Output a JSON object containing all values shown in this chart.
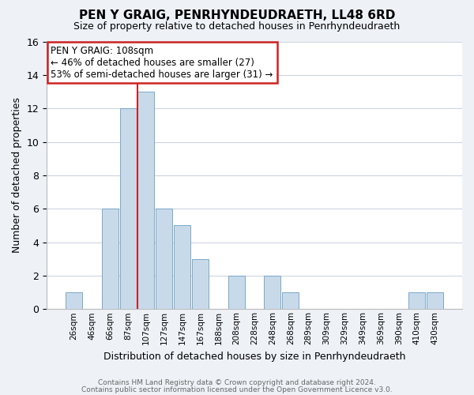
{
  "title": "PEN Y GRAIG, PENRHYNDEUDRAETH, LL48 6RD",
  "subtitle": "Size of property relative to detached houses in Penrhyndeudraeth",
  "xlabel": "Distribution of detached houses by size in Penrhyndeudraeth",
  "ylabel": "Number of detached properties",
  "bar_labels": [
    "26sqm",
    "46sqm",
    "66sqm",
    "87sqm",
    "107sqm",
    "127sqm",
    "147sqm",
    "167sqm",
    "188sqm",
    "208sqm",
    "228sqm",
    "248sqm",
    "268sqm",
    "289sqm",
    "309sqm",
    "329sqm",
    "349sqm",
    "369sqm",
    "390sqm",
    "410sqm",
    "430sqm"
  ],
  "bar_values": [
    1,
    0,
    6,
    12,
    13,
    6,
    5,
    3,
    0,
    2,
    0,
    2,
    1,
    0,
    0,
    0,
    0,
    0,
    0,
    1,
    1
  ],
  "bar_color": "#c8daea",
  "bar_edge_color": "#7aa8c8",
  "highlight_bar_index": 4,
  "highlight_line_color": "#cc2222",
  "annotation_title": "PEN Y GRAIG: 108sqm",
  "annotation_line1": "← 46% of detached houses are smaller (27)",
  "annotation_line2": "53% of semi-detached houses are larger (31) →",
  "annotation_box_edge_color": "#cc2222",
  "ylim": [
    0,
    16
  ],
  "yticks": [
    0,
    2,
    4,
    6,
    8,
    10,
    12,
    14,
    16
  ],
  "footer1": "Contains HM Land Registry data © Crown copyright and database right 2024.",
  "footer2": "Contains public sector information licensed under the Open Government Licence v3.0.",
  "bg_color": "#eef2f7",
  "plot_bg_color": "#ffffff",
  "grid_color": "#cdd5e0"
}
